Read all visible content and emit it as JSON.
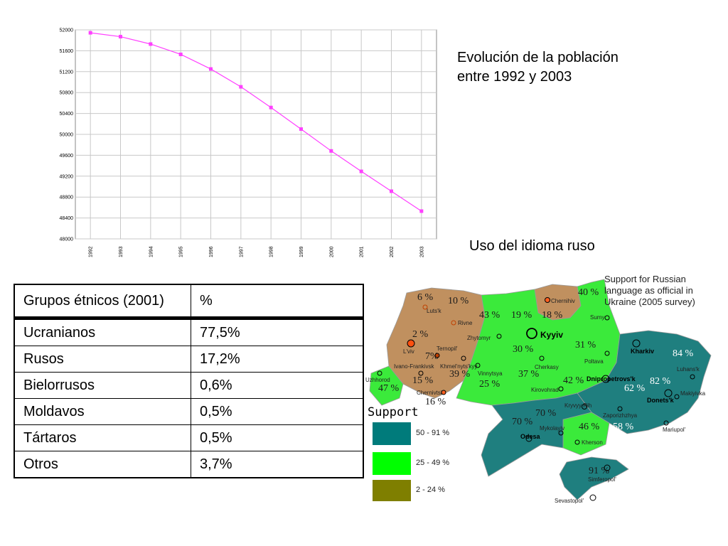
{
  "chart_data": {
    "type": "line",
    "x": [
      "1992",
      "1993",
      "1994",
      "1995",
      "1996",
      "1997",
      "1998",
      "1999",
      "2000",
      "2001",
      "2002",
      "2003"
    ],
    "series": [
      {
        "values": [
          51944,
          51870,
          51728,
          51531,
          51251,
          50910,
          50514,
          50101,
          49683,
          49292,
          48912,
          48531
        ]
      }
    ],
    "ylim": [
      48000,
      52000
    ],
    "yticks": [
      48000,
      48400,
      48800,
      49200,
      49600,
      50000,
      50400,
      50800,
      51200,
      51600,
      52000
    ],
    "grid": true,
    "line_color": "#ff40ff",
    "title": "",
    "xlabel": "",
    "ylabel": ""
  },
  "captions": {
    "population": "Evolución de la población entre 1992 y 2003",
    "language": "Uso del idioma ruso"
  },
  "ethnic_table": {
    "headers": [
      "Grupos étnicos (2001)",
      "%"
    ],
    "rows": [
      [
        "Ucranianos",
        "77,5%"
      ],
      [
        "Rusos",
        "17,2%"
      ],
      [
        "Bielorrusos",
        "0,6%"
      ],
      [
        "Moldavos",
        "0,5%"
      ],
      [
        "Tártaros",
        "0,5%"
      ],
      [
        "Otros",
        "3,7%"
      ]
    ]
  },
  "map": {
    "title": "Support for Russian language as official in Ukraine (2005 survey)",
    "title_lines": [
      "Support for Russian",
      "language as official in",
      "Ukraine (2005 survey)"
    ],
    "legend_title": "Support",
    "legend": [
      {
        "label": "50 - 91 %",
        "color": "#007b7b"
      },
      {
        "label": "25 - 49 %",
        "color": "#00ff00"
      },
      {
        "label": "2 - 24 %",
        "color": "#7f7f00"
      }
    ],
    "colors": {
      "high": "#1f7f7f",
      "mid": "#33ee33",
      "low": "#bf8f60"
    },
    "percentages": {
      "volyn": "6 %",
      "rivne": "10 %",
      "zhytomyr": "43 %",
      "kyiv_obl": "19 %",
      "chernihiv": "18 %",
      "sumy": "40 %",
      "lviv": "2 %",
      "ternopil": "7%",
      "kyiv_city": "30 %",
      "poltava": "31 %",
      "kharkiv": "84 %",
      "ivano_frankivsk": "15 %",
      "khmelnytskyi": "39 %",
      "vinnytsia": "25 %",
      "cherkasy": "37 %",
      "kirovohrad": "42 %",
      "dnipropetrovsk": "62 %",
      "luhansk": "82 %",
      "zakarpattia": "47 %",
      "chernivtsi": "16 %",
      "mykolaiv": "70 %",
      "odesa": "70 %",
      "kherson": "46 %",
      "zaporizhzhia": "58 %",
      "crimea": "91 %"
    },
    "cities": {
      "lutsk": "Luts'k",
      "rivne": "Rivne",
      "chernihiv": "Chernihiv",
      "sumy": "Sumy",
      "zhytomyr": "Zhytomyr",
      "kyiv": "Kyyiv",
      "lviv": "L'viv",
      "ternopil": "Ternopil'",
      "ivano_frankivsk": "Ivano-Frankivsk",
      "khmelnytskyi": "Khmel'nyts'kyy",
      "vinnytsia": "Vinnytsya",
      "cherkasy": "Cherkasy",
      "poltava": "Poltava",
      "kharkiv": "Kharkiv",
      "luhansk": "Luhans'k",
      "uzhhorod": "Uzhhorod",
      "chernivtsi": "Chernivtsi",
      "kirovohrad": "Kirovohrad",
      "dnipropetrovsk": "Dnipropetrovs'k",
      "donetsk": "Donets'k",
      "makiivka": "Makiyivka",
      "kryvyi_rih": "Kryvyy Rih",
      "zaporizhzhia": "Zaporizhzhya",
      "mykolaiv": "Mykolayiv",
      "odesa": "Odesa",
      "kherson": "Kherson",
      "mariupol": "Mariupol'",
      "simferopol": "Simferopol'",
      "sevastopol": "Sevastopol'"
    }
  }
}
